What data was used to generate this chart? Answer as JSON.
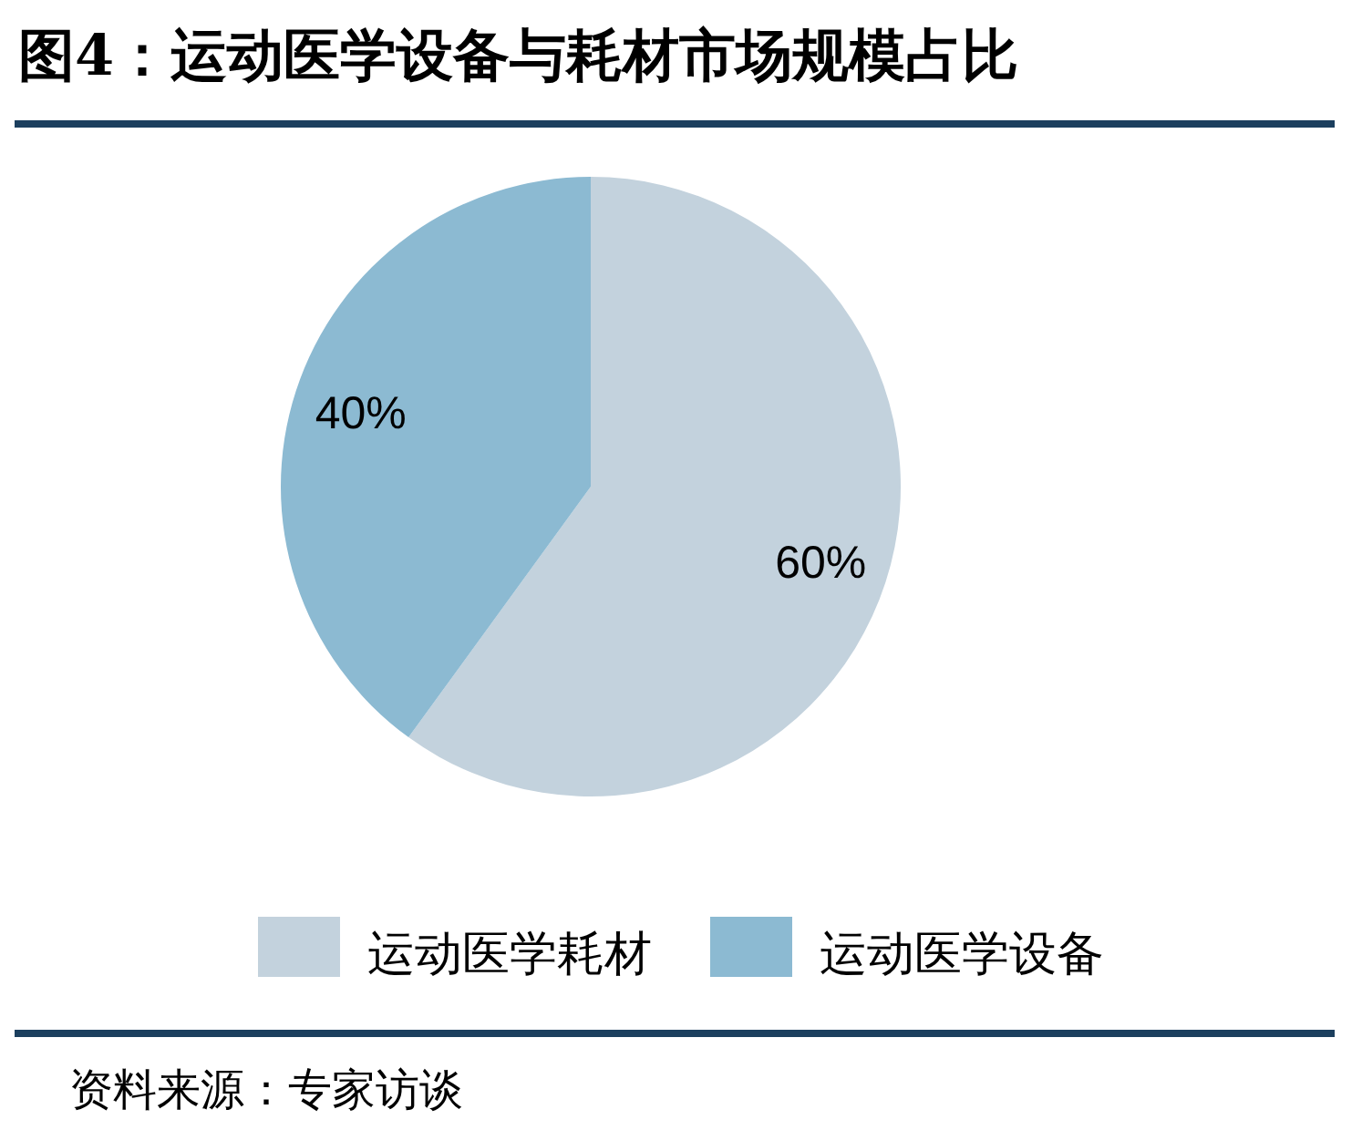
{
  "chart_data": {
    "type": "pie",
    "title": "图4：运动医学设备与耗材市场规模占比",
    "categories": [
      "运动医学耗材",
      "运动医学设备"
    ],
    "values": [
      60,
      40
    ],
    "colors": [
      "#c3d2dd",
      "#8cbad2"
    ],
    "value_labels": [
      "60%",
      "40%"
    ],
    "legend": "bottom",
    "annotations": [
      "资料来源：专家访谈"
    ]
  }
}
